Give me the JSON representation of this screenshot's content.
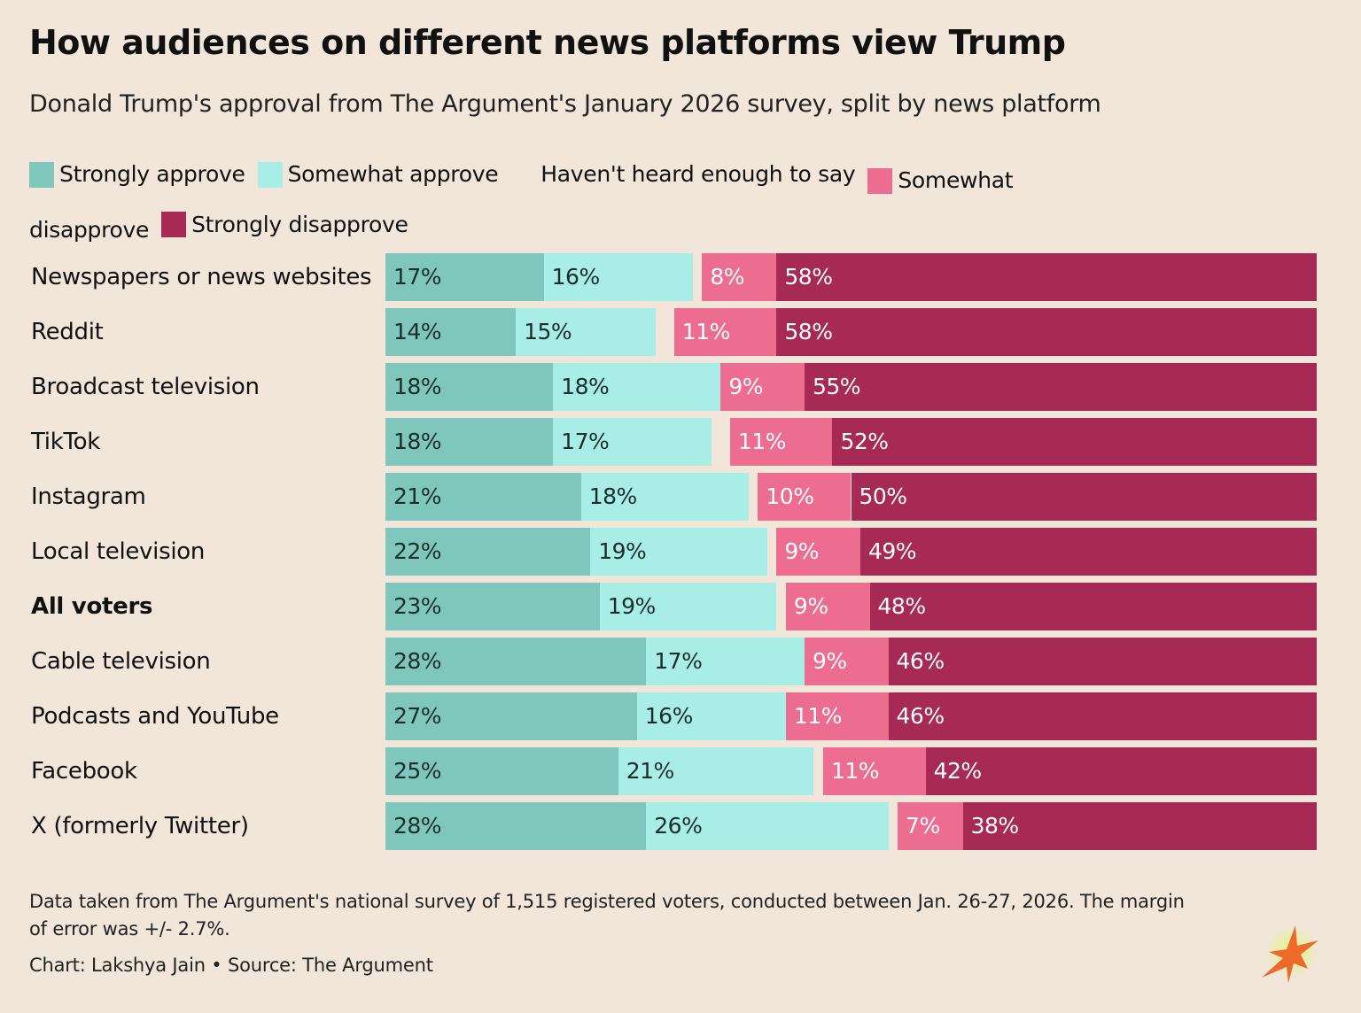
{
  "chart_data": {
    "type": "bar",
    "orientation": "horizontal",
    "stacked": true,
    "title": "How audiences on different news platforms view Trump",
    "subtitle": "Donald Trump's approval from The Argument's January 2026 survey, split by news platform",
    "legend_placement": "top",
    "categories": [
      "Newspapers or news websites",
      "Reddit",
      "Broadcast television",
      "TikTok",
      "Instagram",
      "Local television",
      "All voters",
      "Cable television",
      "Podcasts and YouTube",
      "Facebook",
      "X (formerly Twitter)"
    ],
    "bold_category": "All voters",
    "series": [
      {
        "name": "Strongly approve",
        "color": "#7fc6bd",
        "label_color": "#1a2e2c",
        "values": [
          17,
          14,
          18,
          18,
          21,
          22,
          23,
          28,
          27,
          25,
          28
        ]
      },
      {
        "name": "Somewhat approve",
        "color": "#a8ede6",
        "label_color": "#1a2e2c",
        "values": [
          16,
          15,
          18,
          17,
          18,
          19,
          19,
          17,
          16,
          21,
          26
        ]
      },
      {
        "name": "Haven't heard enough to say",
        "color": "#f1e6d9",
        "label_color": "",
        "values": [
          1,
          2,
          0,
          2,
          1,
          1,
          1,
          0,
          0,
          1,
          1
        ],
        "labels_shown": false
      },
      {
        "name": "Somewhat disapprove",
        "color": "#ec6d90",
        "label_color": "#ffffff",
        "values": [
          8,
          11,
          9,
          11,
          10,
          9,
          9,
          9,
          11,
          11,
          7
        ]
      },
      {
        "name": "Strongly disapprove",
        "color": "#a72a55",
        "label_color": "#ffffff",
        "values": [
          58,
          58,
          55,
          52,
          50,
          49,
          48,
          46,
          46,
          42,
          38
        ]
      }
    ],
    "value_suffix": "%",
    "grid": false
  },
  "footer": {
    "note": "Data taken from The Argument's national survey of 1,515 registered voters, conducted between Jan. 26-27, 2026. The margin of error was +/- 2.7%.",
    "credit": "Chart: Lakshya Jain • Source: The Argument"
  },
  "logo": {
    "icon": "starburst-logo",
    "colors": [
      "#ee6a2a",
      "#e5f57a"
    ]
  }
}
